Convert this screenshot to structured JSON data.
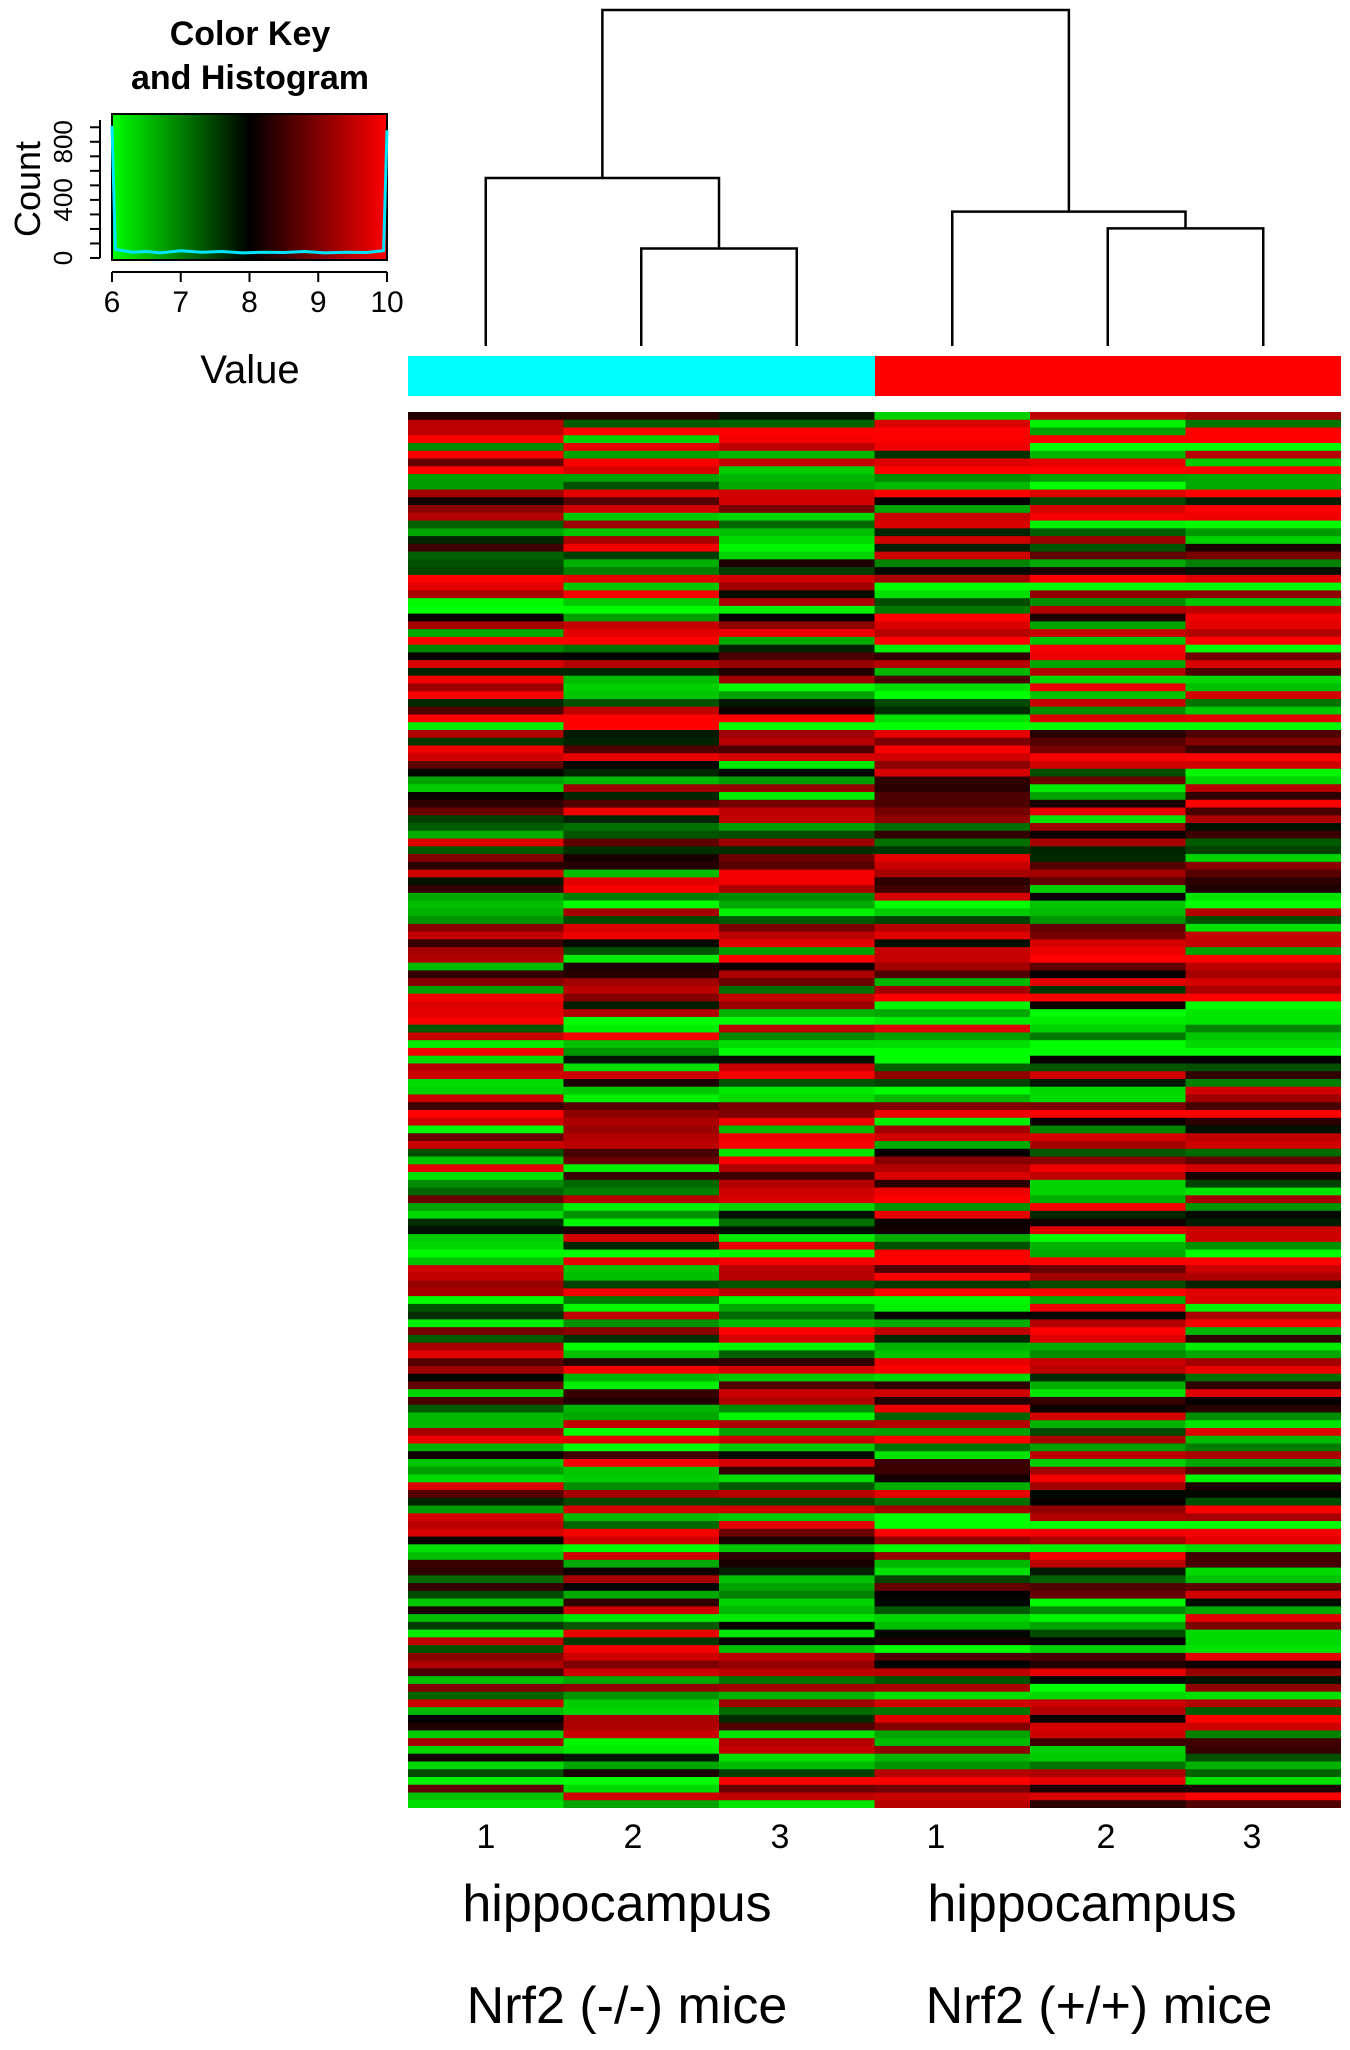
{
  "chart_data": {
    "type": "heatmap",
    "color_key": {
      "title_line1": "Color Key",
      "title_line2": "and Histogram",
      "ylabel": "Count",
      "xlabel": "Value",
      "x_ticks": [
        "6",
        "7",
        "8",
        "9",
        "10"
      ],
      "y_ticks": [
        "0",
        "400",
        "800"
      ],
      "xlim": [
        6,
        10
      ],
      "ylim": [
        0,
        950
      ],
      "colors": [
        "#00ff00",
        "#000000",
        "#ff0000"
      ],
      "histogram_color": "#00e5ff",
      "histogram": {
        "x": [
          6.0,
          6.05,
          6.1,
          6.3,
          6.5,
          6.7,
          7.0,
          7.3,
          7.6,
          7.9,
          8.2,
          8.5,
          8.8,
          9.1,
          9.4,
          9.7,
          9.95,
          10.0
        ],
        "y": [
          910,
          60,
          55,
          40,
          45,
          35,
          50,
          40,
          45,
          35,
          40,
          38,
          45,
          35,
          40,
          38,
          50,
          880
        ]
      }
    },
    "column_labels": [
      "1",
      "2",
      "3",
      "1",
      "2",
      "3"
    ],
    "groups": [
      {
        "tissue": "hippocampus",
        "genotype": "Nrf2 (-/-) mice",
        "color": "#00ffff"
      },
      {
        "tissue": "hippocampus",
        "genotype": "Nrf2 (+/+) mice",
        "color": "#ff0000"
      }
    ],
    "dendrogram": {
      "leaves": [
        1,
        2,
        3,
        4,
        5,
        6
      ],
      "merges": [
        {
          "a": "2",
          "b": "3",
          "height": 0.29
        },
        {
          "a": "5",
          "b": "6",
          "height": 0.35
        },
        {
          "a": "4",
          "b": "5-6",
          "height": 0.4
        },
        {
          "a": "1",
          "b": "2-3",
          "height": 0.5
        },
        {
          "a": "1-2-3",
          "b": "4-5-6",
          "height": 1.0
        }
      ]
    },
    "rows": 180,
    "value_range": [
      6,
      10
    ]
  }
}
